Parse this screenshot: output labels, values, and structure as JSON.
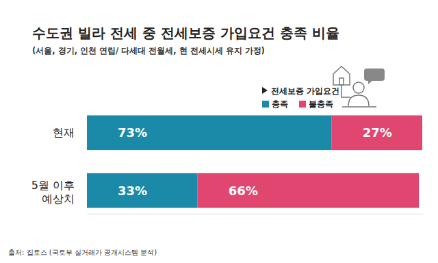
{
  "chart_data": {
    "type": "bar",
    "orientation": "horizontal",
    "stacked": true,
    "title": "수도권 빌라 전세 중 전세보증 가입요건 충족 비율",
    "subtitle": "(서울, 경기, 인천 연립/ 다세대 전월세, 현 전세시세 유지 가정)",
    "source": "출처: 집토스 (국토부 실거래가 공개시스템 분석)",
    "legend_title": "전세보증 가입요건",
    "categories": [
      "현재",
      "5월 이후 예상치"
    ],
    "series": [
      {
        "name": "충족",
        "color": "#1b8aa8",
        "values": [
          73,
          33
        ],
        "value_labels": [
          "73%",
          "33%"
        ]
      },
      {
        "name": "불충족",
        "color": "#e0466f",
        "values": [
          27,
          66
        ],
        "value_labels": [
          "27%",
          "66%"
        ]
      }
    ],
    "xlim": [
      0,
      100
    ],
    "tick_labels": false,
    "data_labels": true,
    "grid": false,
    "legend": "top"
  }
}
